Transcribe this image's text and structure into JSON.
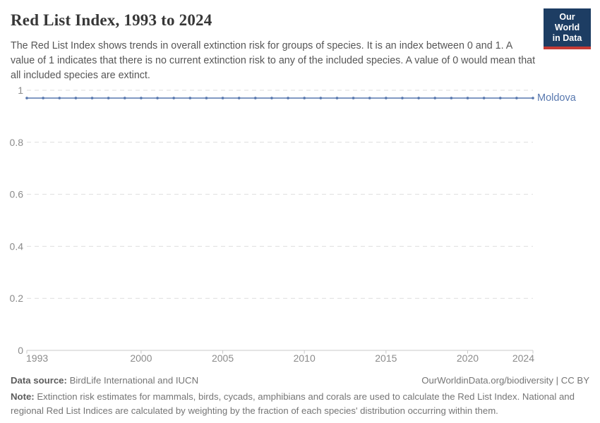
{
  "header": {
    "title": "Red List Index, 1993 to 2024",
    "subtitle": "The Red List Index shows trends in overall extinction risk for groups of species. It is an index between 0 and 1. A value of 1 indicates that there is no current extinction risk to any of the included species. A value of 0 would mean that all included species are extinct.",
    "logo": {
      "line1": "Our World",
      "line2": "in Data"
    }
  },
  "colors": {
    "series_blue": "#5878af",
    "logo_background": "#1d3d63",
    "logo_stripe": "#c43a35",
    "gridline": "#dedede",
    "axis_line": "#c8c8c8",
    "tick_label": "#8b8b8b"
  },
  "chart_data": {
    "type": "line",
    "title": "Red List Index, 1993 to 2024",
    "xlabel": "",
    "ylabel": "",
    "xlim": [
      1993,
      2024
    ],
    "ylim": [
      0,
      1
    ],
    "x_ticks": [
      1993,
      2000,
      2005,
      2010,
      2015,
      2020,
      2024
    ],
    "y_ticks": [
      0,
      0.2,
      0.4,
      0.6,
      0.8,
      1
    ],
    "grid": "dashed-horizontal",
    "legend_position": "right-of-line-end",
    "series": [
      {
        "name": "Moldova",
        "color": "#5878af",
        "x": [
          1993,
          1994,
          1995,
          1996,
          1997,
          1998,
          1999,
          2000,
          2001,
          2002,
          2003,
          2004,
          2005,
          2006,
          2007,
          2008,
          2009,
          2010,
          2011,
          2012,
          2013,
          2014,
          2015,
          2016,
          2017,
          2018,
          2019,
          2020,
          2021,
          2022,
          2023,
          2024
        ],
        "values": [
          0.97,
          0.97,
          0.97,
          0.97,
          0.97,
          0.97,
          0.97,
          0.97,
          0.97,
          0.97,
          0.97,
          0.97,
          0.97,
          0.97,
          0.97,
          0.97,
          0.97,
          0.97,
          0.97,
          0.97,
          0.97,
          0.97,
          0.97,
          0.97,
          0.97,
          0.97,
          0.97,
          0.97,
          0.97,
          0.97,
          0.97,
          0.97
        ]
      }
    ]
  },
  "footer": {
    "datasource_label": "Data source:",
    "datasource_value": "BirdLife International and IUCN",
    "license": "OurWorldinData.org/biodiversity | CC BY",
    "note_label": "Note:",
    "note_value": "Extinction risk estimates for mammals, birds, cycads, amphibians and corals are used to calculate the Red List Index. National and regional Red List Indices are calculated by weighting by the fraction of each species' distribution occurring within them."
  }
}
